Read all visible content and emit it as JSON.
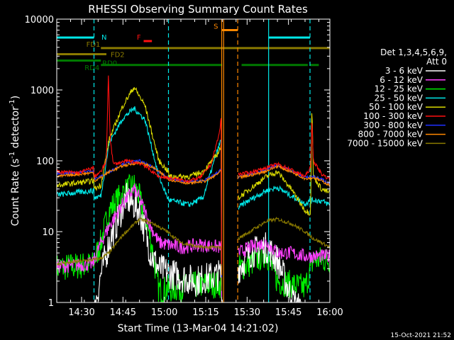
{
  "chart_data": {
    "type": "line",
    "title": "RHESSI Observing Summary Count Rates",
    "xlabel": "Start Time (13-Mar-04 14:21:02)",
    "ylabel_main": "Count Rate (s",
    "ylabel_sup1": "-1",
    "ylabel_mid": " detector",
    "ylabel_sup2": "-1",
    "ylabel_end": ")",
    "y_scale": "log",
    "ylim": [
      1,
      10000
    ],
    "xlim_minutes": [
      0,
      99
    ],
    "x_ticks": [
      {
        "m": 9,
        "label": "14:30"
      },
      {
        "m": 24,
        "label": "14:45"
      },
      {
        "m": 39,
        "label": "15:00"
      },
      {
        "m": 54,
        "label": "15:15"
      },
      {
        "m": 69,
        "label": "15:30"
      },
      {
        "m": 84,
        "label": "15:45"
      },
      {
        "m": 99,
        "label": "16:00"
      }
    ],
    "y_ticks": [
      {
        "v": 1,
        "label": "1"
      },
      {
        "v": 10,
        "label": "10"
      },
      {
        "v": 100,
        "label": "100"
      },
      {
        "v": 1000,
        "label": "1000"
      },
      {
        "v": 10000,
        "label": "10000"
      }
    ],
    "legend_header": [
      "Det 1,3,4,5,6,9,",
      "Att 0"
    ],
    "series": [
      {
        "name": "3 - 6 keV",
        "color": "#ffffff"
      },
      {
        "name": "6 - 12 keV",
        "color": "#ff40ff"
      },
      {
        "name": "12 - 25 keV",
        "color": "#00ee00"
      },
      {
        "name": "25 - 50 keV",
        "color": "#00e8e8"
      },
      {
        "name": "50 - 100 keV",
        "color": "#d8d800"
      },
      {
        "name": "100 - 300 keV",
        "color": "#ff1010"
      },
      {
        "name": "300 - 800 keV",
        "color": "#2030ff"
      },
      {
        "name": "800 - 7000 keV",
        "color": "#ff8800"
      },
      {
        "name": "7000 - 15000 keV",
        "color": "#8a7a00"
      }
    ],
    "flag_bars": [
      {
        "label": "N",
        "color": "#00e8e8",
        "y": 5500,
        "segments": [
          [
            0,
            13.5
          ],
          [
            76.8,
            91.8
          ]
        ]
      },
      {
        "label": "S",
        "color": "#ff8800",
        "y": 7000,
        "segments": [
          [
            59.8,
            65.6
          ]
        ]
      },
      {
        "label": "F",
        "color": "#ff1010",
        "y": 4900,
        "segments": [
          [
            31.5,
            34.5
          ]
        ]
      },
      {
        "label": "FD1",
        "color": "#8a7a00",
        "y": 3900,
        "segments": [
          [
            16,
            99
          ]
        ]
      },
      {
        "label": "FD2",
        "color": "#8a7a00",
        "y": 3200,
        "segments": [
          [
            0,
            18
          ]
        ]
      },
      {
        "label": "RD0",
        "color": "#007a00",
        "y": 2600,
        "segments": [
          [
            0,
            16
          ]
        ]
      },
      {
        "label": "RD4",
        "color": "#007a00",
        "y": 2250,
        "segments": [
          [
            16,
            40.5
          ],
          [
            40.5,
            60
          ],
          [
            67,
            91
          ],
          [
            91.8,
            95
          ]
        ]
      }
    ],
    "vertical_lines": [
      {
        "color": "#00e8e8",
        "m": 13.5,
        "style": "dashed"
      },
      {
        "color": "#00e8e8",
        "m": 40.5,
        "style": "dashed"
      },
      {
        "color": "#00e8e8",
        "m": 76.8,
        "style": "solid"
      },
      {
        "color": "#00e8e8",
        "m": 91.8,
        "style": "dashed"
      },
      {
        "color": "#ff8800",
        "m": 59.8,
        "style": "solid"
      },
      {
        "color": "#ff8800",
        "m": 60.5,
        "style": "solid"
      },
      {
        "color": "#ff8800",
        "m": 65.6,
        "style": "dashed"
      }
    ],
    "footer_date": "15-Oct-2021 21:52"
  }
}
